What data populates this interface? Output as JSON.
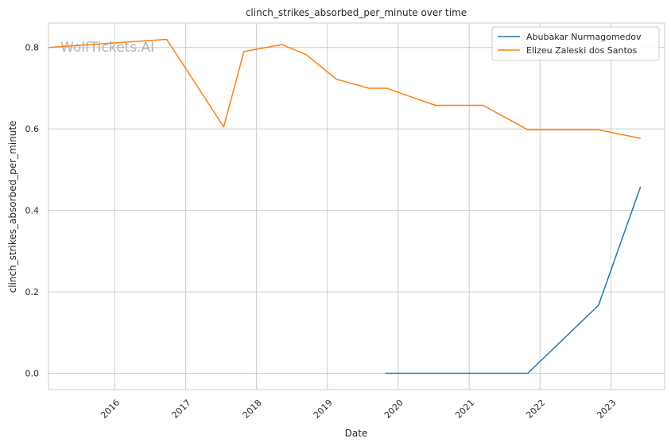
{
  "chart_data": {
    "type": "line",
    "title": "clinch_strikes_absorbed_per_minute over time",
    "xlabel": "Date",
    "ylabel": "clinch_strikes_absorbed_per_minute",
    "watermark": "WolfTickets.AI",
    "x_ticks": [
      "2016",
      "2017",
      "2018",
      "2019",
      "2020",
      "2021",
      "2022",
      "2023"
    ],
    "y_ticks": [
      "0.0",
      "0.2",
      "0.4",
      "0.6",
      "0.8"
    ],
    "xlim": [
      "2015-01-25",
      "2023-10-05"
    ],
    "ylim": [
      -0.04,
      0.86
    ],
    "grid": true,
    "legend_position": "top-right",
    "series": [
      {
        "name": "Abubakar Nurmagomedov",
        "color": "#1f77b4",
        "points": [
          {
            "x": "2019-10-26",
            "y": 0.0
          },
          {
            "x": "2021-10-30",
            "y": 0.0
          },
          {
            "x": "2022-10-29",
            "y": 0.167
          },
          {
            "x": "2023-06-03",
            "y": 0.458
          }
        ]
      },
      {
        "name": "Elizeu Zaleski dos Santos",
        "color": "#ff7f0e",
        "points": [
          {
            "x": "2015-01-25",
            "y": 0.8
          },
          {
            "x": "2016-09-25",
            "y": 0.82
          },
          {
            "x": "2017-07-16",
            "y": 0.605
          },
          {
            "x": "2017-10-28",
            "y": 0.79
          },
          {
            "x": "2018-05-12",
            "y": 0.807
          },
          {
            "x": "2018-09-15",
            "y": 0.782
          },
          {
            "x": "2019-02-17",
            "y": 0.722
          },
          {
            "x": "2019-08-03",
            "y": 0.7
          },
          {
            "x": "2019-11-02",
            "y": 0.7
          },
          {
            "x": "2020-02-29",
            "y": 0.68
          },
          {
            "x": "2020-07-11",
            "y": 0.658
          },
          {
            "x": "2021-03-13",
            "y": 0.658
          },
          {
            "x": "2021-10-30",
            "y": 0.598
          },
          {
            "x": "2022-10-29",
            "y": 0.598
          },
          {
            "x": "2023-06-03",
            "y": 0.577
          }
        ]
      }
    ]
  }
}
